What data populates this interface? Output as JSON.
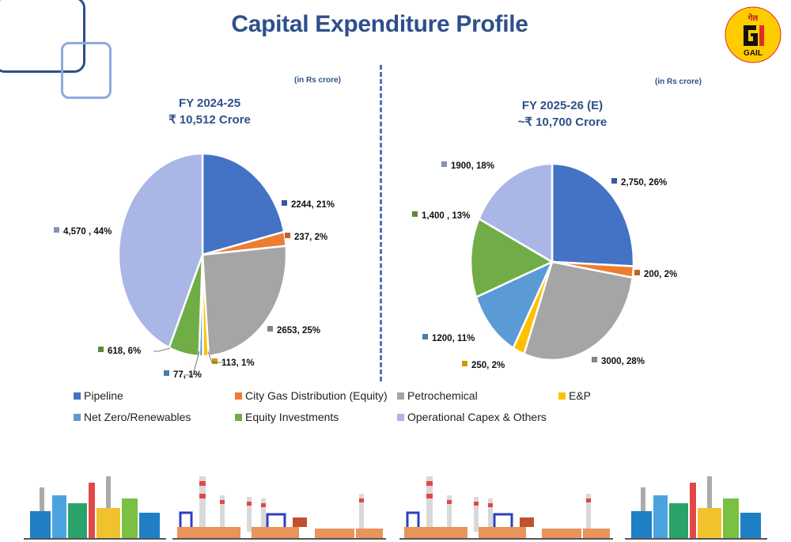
{
  "slide": {
    "title": "Capital Expenditure Profile",
    "logo_text": "GAIL",
    "logo_hindi": "गेल"
  },
  "charts": {
    "left": {
      "unit_note": "(in Rs crore)",
      "heading_line1": "FY 2024-25",
      "heading_line2": "₹ 10,512 Crore"
    },
    "right": {
      "unit_note": "(in Rs crore)",
      "heading_line1": "FY 2025-26 (E)",
      "heading_line2": "~₹ 10,700  Crore"
    }
  },
  "legend": [
    {
      "label": "Pipeline",
      "color": "#4472c4"
    },
    {
      "label": "City Gas Distribution (Equity)",
      "color": "#ed7d31"
    },
    {
      "label": "Petrochemical",
      "color": "#a5a5a5"
    },
    {
      "label": "E&P",
      "color": "#ffc000"
    },
    {
      "label": "Net Zero/Renewables",
      "color": "#5b9bd5"
    },
    {
      "label": "Equity Investments",
      "color": "#70ad47"
    },
    {
      "label": "Operational Capex & Others",
      "color": "#a9b6e6"
    }
  ],
  "chart_data": [
    {
      "type": "pie",
      "title": "FY 2024-25",
      "categories": [
        "Pipeline",
        "City Gas Distribution (Equity)",
        "Petrochemical",
        "E&P",
        "Net Zero/Renewables",
        "Equity Investments",
        "Operational Capex & Others"
      ],
      "values": [
        2244,
        237,
        2653,
        113,
        77,
        618,
        4570
      ],
      "data_labels": [
        "2244, 21%",
        "237, 2%",
        "2653, 25%",
        "113, 1%",
        "77, 1%",
        "618, 6%",
        "4,570 , 44%"
      ],
      "colors": [
        "#4472c4",
        "#ed7d31",
        "#a5a5a5",
        "#ffc000",
        "#5b9bd5",
        "#70ad47",
        "#a9b6e6"
      ]
    },
    {
      "type": "pie",
      "title": "FY 2025-26 (E)",
      "categories": [
        "Pipeline",
        "City Gas Distribution (Equity)",
        "Petrochemical",
        "E&P",
        "Net Zero/Renewables",
        "Equity Investments",
        "Operational Capex & Others"
      ],
      "values": [
        2750,
        200,
        3000,
        250,
        1200,
        1400,
        1900
      ],
      "data_labels": [
        "2,750, 26%",
        "200, 2%",
        "3000, 28%",
        "250, 2%",
        "1200, 11%",
        "1,400 , 13%",
        "1900, 18%"
      ],
      "colors": [
        "#4472c4",
        "#ed7d31",
        "#a5a5a5",
        "#ffc000",
        "#5b9bd5",
        "#70ad47",
        "#a9b6e6"
      ]
    }
  ]
}
